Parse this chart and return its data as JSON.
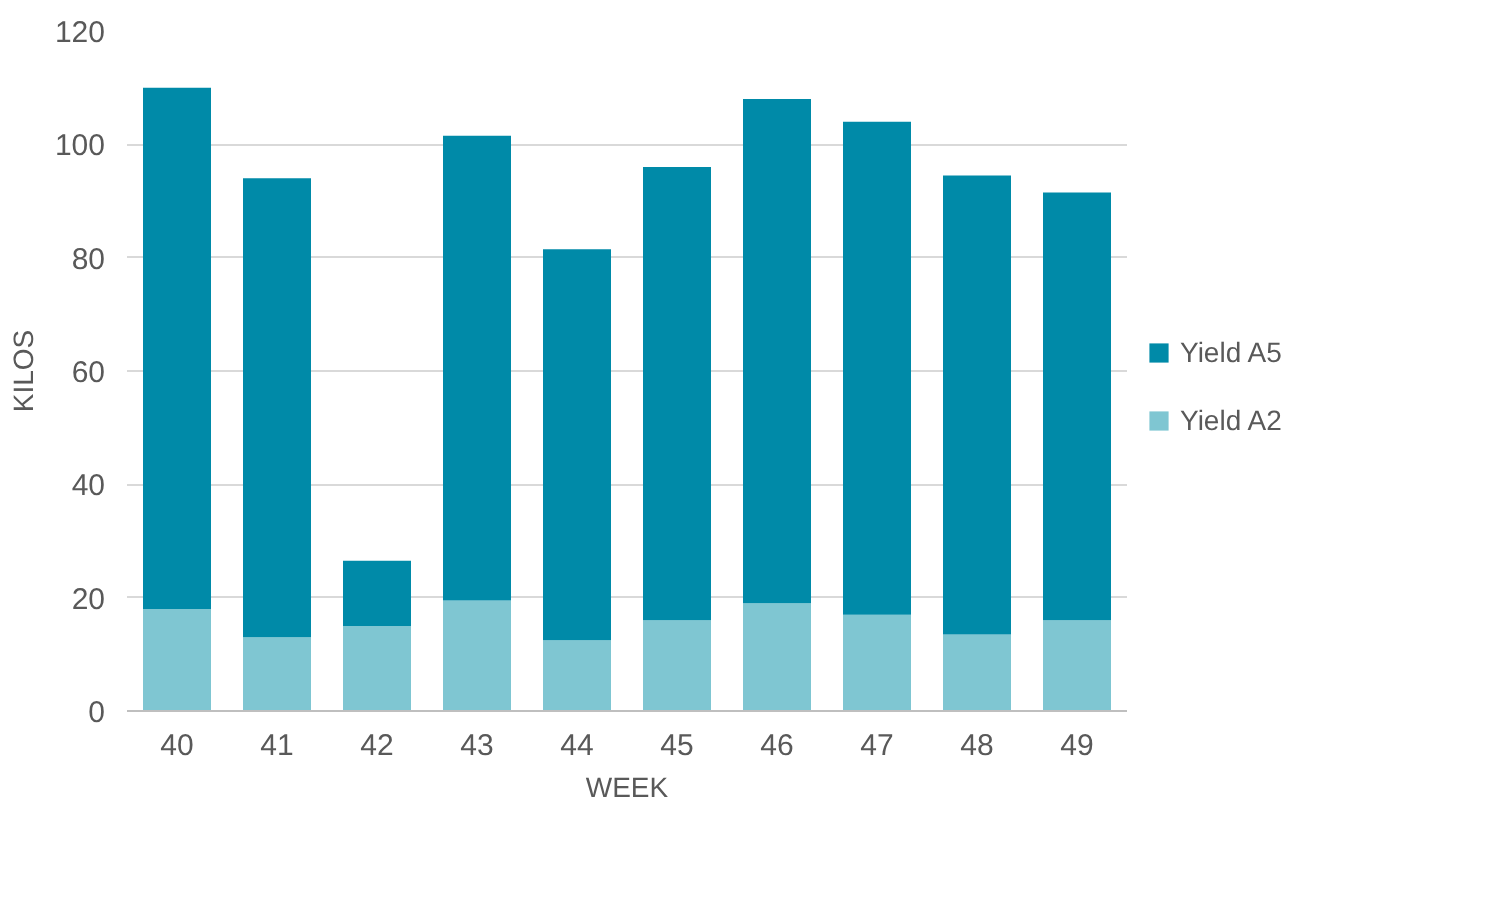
{
  "chart_data": {
    "type": "bar",
    "stacked": true,
    "xlabel": "WEEK",
    "ylabel": "KILOS",
    "categories": [
      "40",
      "41",
      "42",
      "43",
      "44",
      "45",
      "46",
      "47",
      "48",
      "49"
    ],
    "series": [
      {
        "name": "Yield A2",
        "color": "#7fc6d2",
        "values": [
          18,
          13,
          15,
          19.5,
          12.5,
          16,
          19,
          17,
          13.5,
          16
        ]
      },
      {
        "name": "Yield A5",
        "color": "#008aa8",
        "values": [
          92,
          81,
          11.5,
          82,
          69,
          80,
          89,
          87,
          81,
          75.5
        ]
      }
    ],
    "ylim": [
      0,
      120
    ],
    "yticks": [
      0,
      20,
      40,
      60,
      80,
      100,
      120
    ],
    "grid": "y",
    "legend": "right"
  }
}
